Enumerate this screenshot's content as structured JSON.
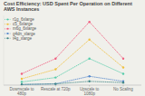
{
  "chart_data": {
    "type": "line",
    "title": "Cost Efficiency: USD Spent Per Operation on Different AWS Instances",
    "categories": [
      "Downscale to 480p",
      "Rescale at 720p",
      "Upscale to 1080p",
      "No Scaling"
    ],
    "series": [
      {
        "name": "r1g_6xlarge",
        "color": "#55ccaa",
        "values": [
          0.05,
          0.12,
          0.42,
          0.18
        ]
      },
      {
        "name": "c5_6xlarge",
        "color": "#f0c040",
        "values": [
          0.1,
          0.25,
          0.72,
          0.28
        ]
      },
      {
        "name": "m6g_6xlarge",
        "color": "#f06080",
        "values": [
          0.18,
          0.42,
          1.0,
          0.42
        ]
      },
      {
        "name": "g4dn_xlarge",
        "color": "#5588cc",
        "values": [
          0.01,
          0.02,
          0.14,
          0.06
        ]
      },
      {
        "name": "t4g_xlarge",
        "color": "#448888",
        "values": [
          0.01,
          0.02,
          0.06,
          0.04
        ]
      }
    ],
    "ylim": [
      0,
      1.1
    ],
    "tick_labels": "x",
    "legend": "upper left",
    "marker": "circle",
    "line_style": "dotted"
  }
}
